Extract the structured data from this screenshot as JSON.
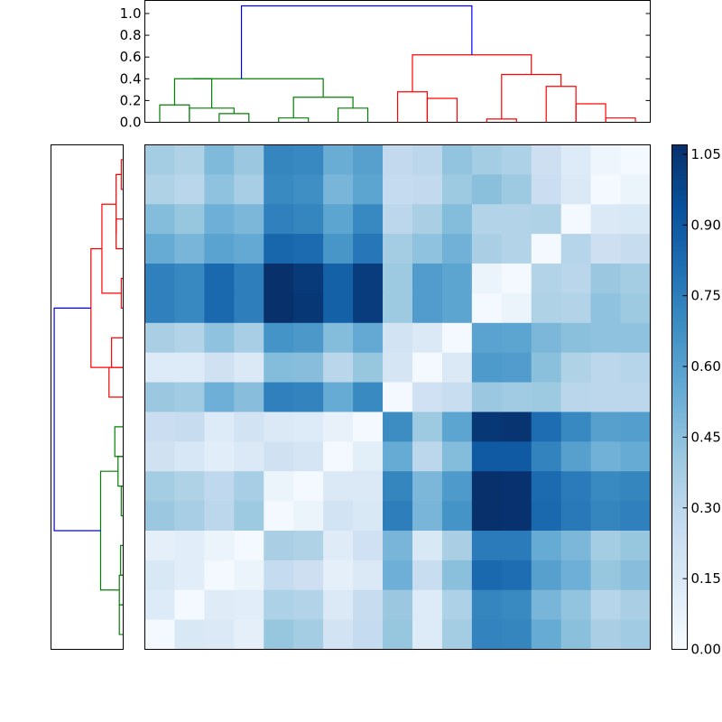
{
  "colors": {
    "dendrogram_top_link": "#0000ff",
    "dendrogram_cluster_a": "#008000",
    "dendrogram_cluster_b": "#ff0000",
    "heatmap_low": "#f7fbff",
    "heatmap_high": "#08306b"
  },
  "chart_data": [
    {
      "type": "dendrogram",
      "orientation": "top",
      "ylim": [
        0,
        1.12
      ],
      "yticks": [
        0.0,
        0.2,
        0.4,
        0.6,
        0.8,
        1.0
      ],
      "ytick_labels": [
        "0.0",
        "0.2",
        "0.4",
        "0.6",
        "0.8",
        "1.0"
      ],
      "leaf_count": 17,
      "links": [
        {
          "a": 1.0,
          "b": 2.0,
          "ha": 0,
          "hb": 0,
          "h": 0.16,
          "color": "cluster_a"
        },
        {
          "a": 3.0,
          "b": 4.0,
          "ha": 0,
          "hb": 0,
          "h": 0.08,
          "color": "cluster_a"
        },
        {
          "a": 2.0,
          "b": 3.5,
          "ha": 0,
          "hb": 0.08,
          "h": 0.13,
          "color": "cluster_a"
        },
        {
          "a": 1.5,
          "b": 2.75,
          "ha": 0.16,
          "hb": 0.13,
          "h": 0.4,
          "color": "cluster_a"
        },
        {
          "a": 5.0,
          "b": 6.0,
          "ha": 0,
          "hb": 0,
          "h": 0.04,
          "color": "cluster_a"
        },
        {
          "a": 7.0,
          "b": 8.0,
          "ha": 0,
          "hb": 0,
          "h": 0.13,
          "color": "cluster_a"
        },
        {
          "a": 5.5,
          "b": 7.5,
          "ha": 0.04,
          "hb": 0.13,
          "h": 0.23,
          "color": "cluster_a"
        },
        {
          "a": 2.125,
          "b": 6.5,
          "ha": 0.4,
          "hb": 0.23,
          "h": 0.4,
          "color": "cluster_a"
        },
        {
          "a": 9.0,
          "b": 10.0,
          "ha": 0,
          "hb": 0,
          "h": 0.28,
          "color": "cluster_b"
        },
        {
          "a": 10.0,
          "b": 11.0,
          "ha": 0,
          "hb": 0,
          "h": 0.22,
          "color": "cluster_b"
        },
        {
          "a": 12.0,
          "b": 13.0,
          "ha": 0,
          "hb": 0,
          "h": 0.03,
          "color": "cluster_b"
        },
        {
          "a": 14.0,
          "b": 15.0,
          "ha": 0,
          "hb": 0,
          "h": 0.33,
          "color": "cluster_b"
        },
        {
          "a": 15.0,
          "b": 16.0,
          "ha": 0,
          "hb": 0,
          "h": 0.17,
          "color": "cluster_b"
        },
        {
          "a": 16.0,
          "b": 17.0,
          "ha": 0,
          "hb": 0,
          "h": 0.04,
          "color": "cluster_b"
        },
        {
          "a": 12.5,
          "b": 14.5,
          "ha": 0.03,
          "hb": 0.33,
          "h": 0.44,
          "color": "cluster_b"
        },
        {
          "a": 9.5,
          "b": 13.5,
          "ha": 0.28,
          "hb": 0.44,
          "h": 0.62,
          "color": "cluster_b"
        },
        {
          "a": 3.75,
          "b": 11.5,
          "ha": 0.4,
          "hb": 0.62,
          "h": 1.07,
          "color": "top_link"
        }
      ]
    },
    {
      "type": "dendrogram",
      "orientation": "left",
      "leaf_count": 17,
      "links": [
        {
          "a": 1.0,
          "b": 2.0,
          "ha": 0,
          "hb": 0,
          "h": 0.03,
          "color": "cluster_b"
        },
        {
          "a": 3.0,
          "b": 4.0,
          "ha": 0,
          "hb": 0,
          "h": 0.11,
          "color": "cluster_b"
        },
        {
          "a": 1.5,
          "b": 3.5,
          "ha": 0.03,
          "hb": 0.11,
          "h": 0.11,
          "color": "cluster_b"
        },
        {
          "a": 5.0,
          "b": 6.0,
          "ha": 0,
          "hb": 0,
          "h": 0.03,
          "color": "cluster_b"
        },
        {
          "a": 2.5,
          "b": 5.5,
          "ha": 0.11,
          "hb": 0.03,
          "h": 0.33,
          "color": "cluster_b"
        },
        {
          "a": 7.0,
          "b": 8.0,
          "ha": 0,
          "hb": 0,
          "h": 0.18,
          "color": "cluster_b"
        },
        {
          "a": 8.0,
          "b": 9.0,
          "ha": 0,
          "hb": 0,
          "h": 0.22,
          "color": "cluster_b"
        },
        {
          "a": 4.0,
          "b": 8.0,
          "ha": 0.33,
          "hb": 0.22,
          "h": 0.5,
          "color": "cluster_b"
        },
        {
          "a": 10.0,
          "b": 11.0,
          "ha": 0,
          "hb": 0,
          "h": 0.13,
          "color": "cluster_a"
        },
        {
          "a": 11.0,
          "b": 12.0,
          "ha": 0,
          "hb": 0,
          "h": 0.08,
          "color": "cluster_a"
        },
        {
          "a": 12.0,
          "b": 13.0,
          "ha": 0,
          "hb": 0,
          "h": 0.03,
          "color": "cluster_a"
        },
        {
          "a": 14.0,
          "b": 15.0,
          "ha": 0,
          "hb": 0,
          "h": 0.04,
          "color": "cluster_a"
        },
        {
          "a": 15.0,
          "b": 16.0,
          "ha": 0,
          "hb": 0,
          "h": 0.06,
          "color": "cluster_a"
        },
        {
          "a": 16.0,
          "b": 17.0,
          "ha": 0,
          "hb": 0,
          "h": 0.06,
          "color": "cluster_a"
        },
        {
          "a": 11.5,
          "b": 15.5,
          "ha": 0.08,
          "hb": 0.06,
          "h": 0.35,
          "color": "cluster_a"
        },
        {
          "a": 6.0,
          "b": 13.5,
          "ha": 0.5,
          "hb": 0.35,
          "h": 1.07,
          "color": "top_link"
        }
      ]
    },
    {
      "type": "heatmap",
      "rows": 17,
      "cols": 17,
      "colormap": "Blues",
      "vmin": 0.0,
      "vmax": 1.07,
      "values": [
        [
          0.38,
          0.34,
          0.48,
          0.41,
          0.72,
          0.71,
          0.54,
          0.6,
          0.28,
          0.3,
          0.43,
          0.38,
          0.35,
          0.23,
          0.14,
          0.05,
          0.02
        ],
        [
          0.34,
          0.31,
          0.44,
          0.37,
          0.7,
          0.68,
          0.5,
          0.58,
          0.27,
          0.28,
          0.4,
          0.45,
          0.4,
          0.24,
          0.15,
          0.02,
          0.06
        ],
        [
          0.47,
          0.42,
          0.53,
          0.49,
          0.74,
          0.72,
          0.58,
          0.71,
          0.3,
          0.36,
          0.47,
          0.33,
          0.33,
          0.34,
          0.02,
          0.15,
          0.16
        ],
        [
          0.55,
          0.5,
          0.59,
          0.56,
          0.85,
          0.83,
          0.65,
          0.78,
          0.38,
          0.44,
          0.52,
          0.36,
          0.33,
          0.02,
          0.32,
          0.23,
          0.26
        ],
        [
          0.74,
          0.71,
          0.84,
          0.75,
          1.07,
          1.03,
          0.87,
          1.02,
          0.4,
          0.62,
          0.58,
          0.06,
          0.02,
          0.33,
          0.31,
          0.41,
          0.38
        ],
        [
          0.74,
          0.71,
          0.84,
          0.75,
          1.07,
          1.04,
          0.87,
          1.02,
          0.4,
          0.62,
          0.58,
          0.02,
          0.06,
          0.34,
          0.33,
          0.44,
          0.4
        ],
        [
          0.36,
          0.33,
          0.44,
          0.37,
          0.66,
          0.64,
          0.47,
          0.56,
          0.2,
          0.15,
          0.02,
          0.59,
          0.58,
          0.49,
          0.45,
          0.44,
          0.44
        ],
        [
          0.14,
          0.14,
          0.21,
          0.15,
          0.47,
          0.46,
          0.31,
          0.42,
          0.18,
          0.02,
          0.15,
          0.63,
          0.62,
          0.45,
          0.34,
          0.3,
          0.32
        ],
        [
          0.41,
          0.39,
          0.53,
          0.46,
          0.74,
          0.73,
          0.55,
          0.7,
          0.02,
          0.22,
          0.25,
          0.41,
          0.39,
          0.4,
          0.31,
          0.3,
          0.3
        ],
        [
          0.24,
          0.26,
          0.14,
          0.2,
          0.15,
          0.14,
          0.08,
          0.02,
          0.69,
          0.4,
          0.58,
          1.04,
          1.05,
          0.82,
          0.71,
          0.6,
          0.61
        ],
        [
          0.21,
          0.17,
          0.12,
          0.15,
          0.21,
          0.18,
          0.02,
          0.11,
          0.55,
          0.3,
          0.47,
          0.9,
          0.9,
          0.73,
          0.6,
          0.52,
          0.55
        ],
        [
          0.38,
          0.34,
          0.29,
          0.37,
          0.06,
          0.02,
          0.15,
          0.15,
          0.72,
          0.49,
          0.63,
          1.07,
          1.06,
          0.83,
          0.76,
          0.7,
          0.72
        ],
        [
          0.41,
          0.37,
          0.3,
          0.4,
          0.02,
          0.06,
          0.2,
          0.16,
          0.75,
          0.5,
          0.66,
          1.07,
          1.06,
          0.84,
          0.77,
          0.72,
          0.74
        ],
        [
          0.1,
          0.12,
          0.06,
          0.02,
          0.36,
          0.34,
          0.13,
          0.22,
          0.5,
          0.16,
          0.36,
          0.76,
          0.76,
          0.55,
          0.49,
          0.38,
          0.42
        ],
        [
          0.16,
          0.12,
          0.02,
          0.06,
          0.27,
          0.23,
          0.1,
          0.15,
          0.53,
          0.25,
          0.45,
          0.84,
          0.82,
          0.6,
          0.53,
          0.42,
          0.46
        ],
        [
          0.14,
          0.02,
          0.13,
          0.12,
          0.35,
          0.33,
          0.15,
          0.26,
          0.41,
          0.14,
          0.35,
          0.72,
          0.7,
          0.5,
          0.43,
          0.32,
          0.36
        ],
        [
          0.02,
          0.16,
          0.15,
          0.1,
          0.42,
          0.38,
          0.2,
          0.27,
          0.42,
          0.14,
          0.38,
          0.73,
          0.72,
          0.55,
          0.45,
          0.36,
          0.39
        ]
      ]
    },
    {
      "type": "colorbar",
      "vmin": 0.0,
      "vmax": 1.07,
      "ticks": [
        0.0,
        0.15,
        0.3,
        0.45,
        0.6,
        0.75,
        0.9,
        1.05
      ],
      "tick_labels": [
        "0.00",
        "0.15",
        "0.30",
        "0.45",
        "0.60",
        "0.75",
        "0.90",
        "1.05"
      ]
    }
  ]
}
